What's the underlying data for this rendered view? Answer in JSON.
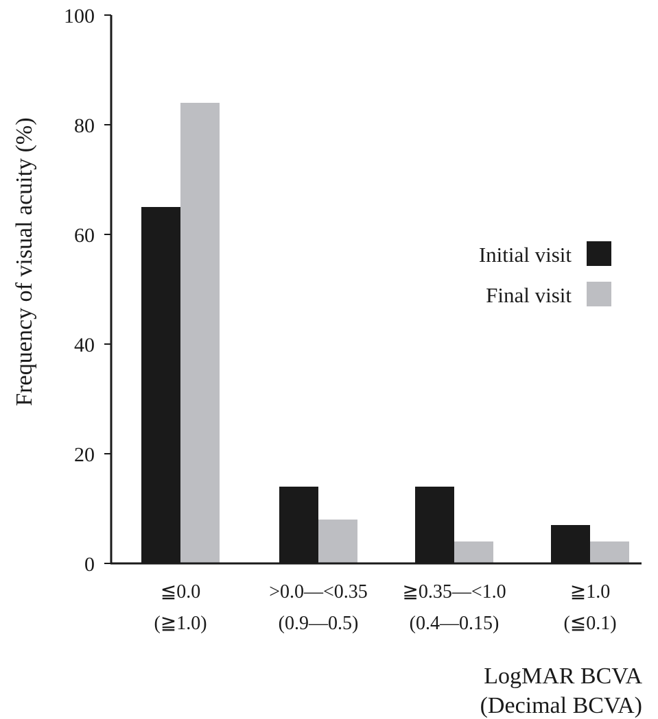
{
  "chart_data": {
    "type": "bar",
    "ylabel": "Frequency of visual acuity (%)",
    "xlabel": [
      "LogMAR BCVA",
      "(Decimal BCVA)"
    ],
    "ylim": [
      0,
      100
    ],
    "yticks": [
      0,
      20,
      40,
      60,
      80,
      100
    ],
    "categories": [
      [
        "≦0.0",
        "(≧1.0)"
      ],
      [
        ">0.0—<0.35",
        "(0.9—0.5)"
      ],
      [
        "≧0.35—<1.0",
        "(0.4—0.15)"
      ],
      [
        "≧1.0",
        "(≦0.1)"
      ]
    ],
    "series": [
      {
        "name": "Initial visit",
        "color": "#1a1a1a",
        "values": [
          65,
          14,
          14,
          7
        ]
      },
      {
        "name": "Final visit",
        "color": "#bdbec2",
        "values": [
          84,
          8,
          4,
          4
        ]
      }
    ],
    "legend": "right",
    "grid": false
  }
}
